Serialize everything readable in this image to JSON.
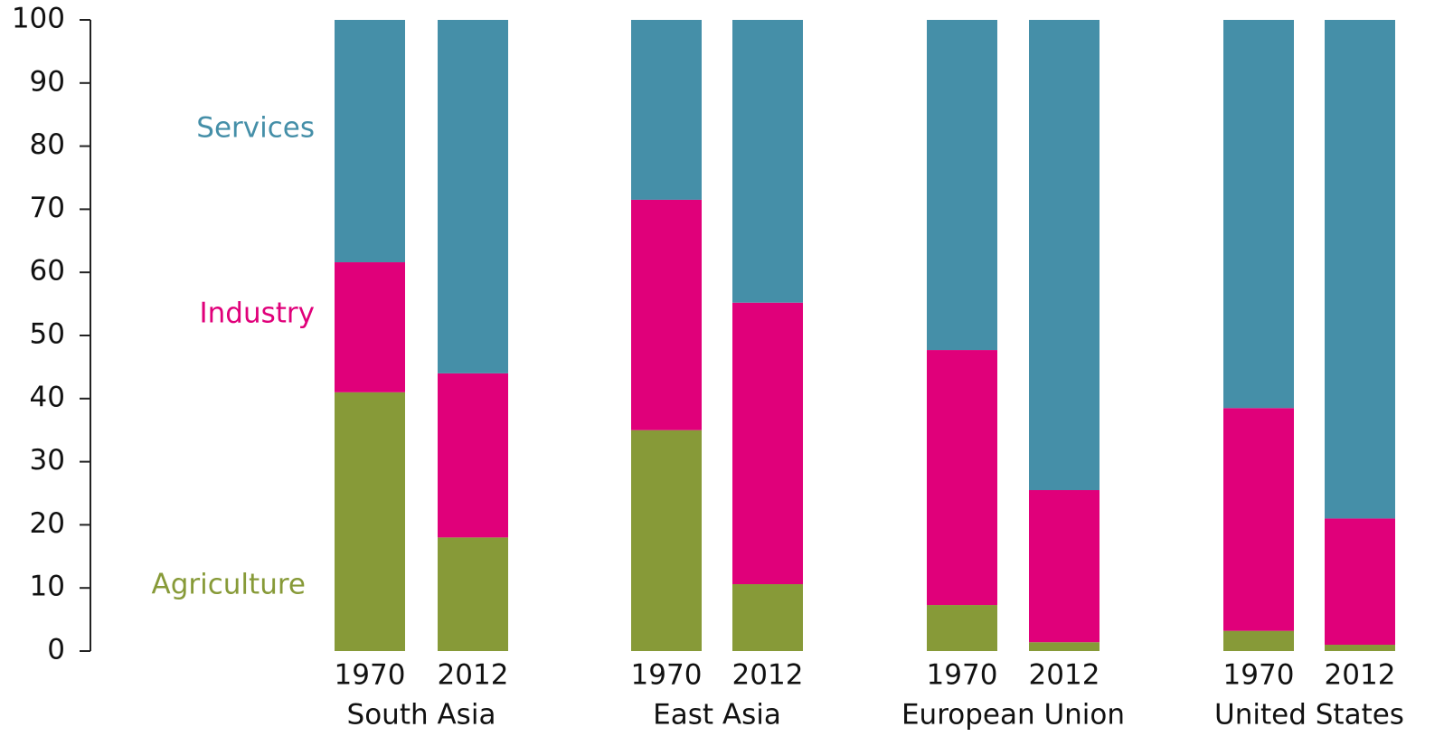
{
  "chart_data": {
    "type": "stacked-bar",
    "categories": [
      "1970",
      "2012",
      "1970",
      "2012",
      "1970",
      "2012",
      "1970",
      "2012"
    ],
    "groups": [
      "South Asia",
      "East Asia",
      "European Union",
      "United States"
    ],
    "series": [
      {
        "name": "Agriculture",
        "color": "#879a38",
        "values": [
          41,
          18,
          35,
          10.6,
          7.3,
          1.4,
          3.2,
          1
        ]
      },
      {
        "name": "Industry",
        "color": "#e0007a",
        "values": [
          20.6,
          26,
          36.5,
          44.6,
          40.4,
          24.1,
          35.3,
          20
        ]
      },
      {
        "name": "Services",
        "color": "#458fa8",
        "values": [
          38.4,
          56,
          28.5,
          44.8,
          52.3,
          74.5,
          61.5,
          79
        ]
      }
    ],
    "ylim": [
      0,
      100
    ],
    "yticks": [
      0,
      10,
      20,
      30,
      40,
      50,
      60,
      70,
      80,
      90,
      100
    ]
  }
}
